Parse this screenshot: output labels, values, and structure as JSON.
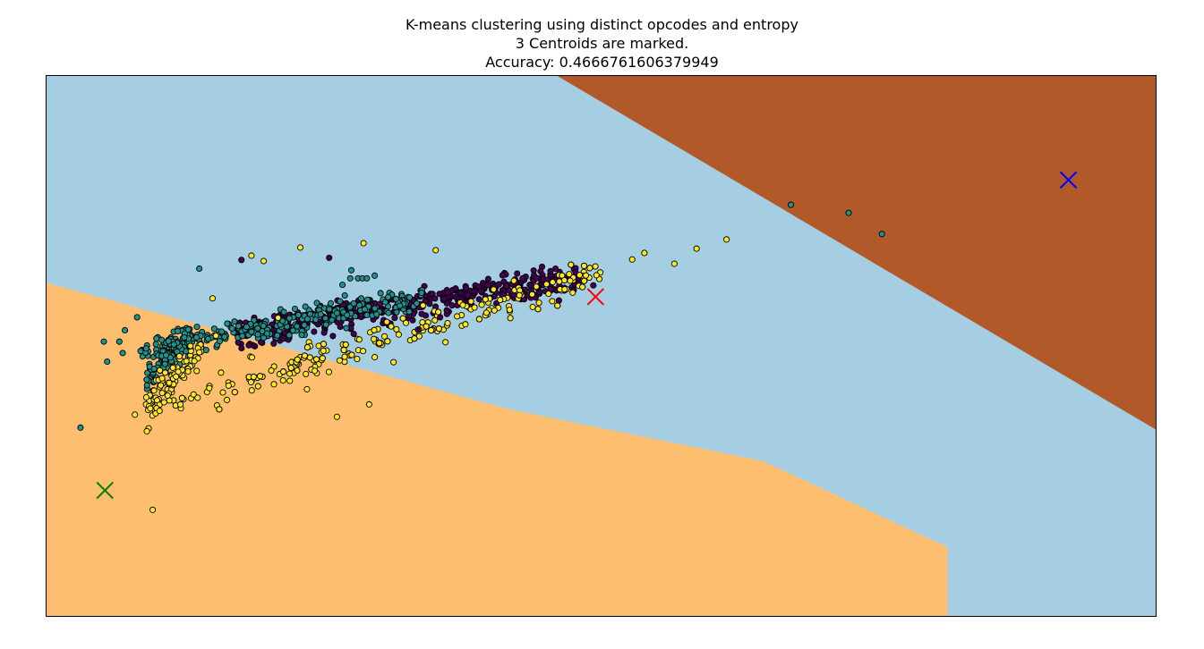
{
  "chart_data": {
    "type": "scatter",
    "title": "K-means clustering using distinct opcodes and entropy",
    "subtitle": "3 Centroids are marked.",
    "accuracy_text": "Accuracy: 0.4666761606379949",
    "xlabel": "",
    "ylabel": "",
    "xticks": false,
    "yticks": false,
    "xlim": [
      0,
      1
    ],
    "ylim": [
      0,
      1
    ],
    "grid": false,
    "legend": "none",
    "regions": [
      {
        "label": "0",
        "color": "#a6cee3"
      },
      {
        "label": "1",
        "color": "#fdbf6f"
      },
      {
        "label": "2",
        "color": "#b15928"
      }
    ],
    "region_boundaries": {
      "orange_upper": [
        [
          0.0,
          0.617
        ],
        [
          0.417,
          0.383
        ],
        [
          0.646,
          0.287
        ],
        [
          0.812,
          0.128
        ],
        [
          0.812,
          0.0
        ]
      ],
      "orange_upper_note": "",
      "brown_lower": [
        [
          0.46,
          1.0
        ],
        [
          1.0,
          0.345
        ]
      ]
    },
    "centroids": [
      {
        "x": 0.495,
        "y": 0.591,
        "color": "#ff0000"
      },
      {
        "x": 0.053,
        "y": 0.233,
        "color": "#008000"
      },
      {
        "x": 0.921,
        "y": 0.807,
        "color": "#0000ff"
      }
    ],
    "point_colors": {
      "purple": "#440154",
      "teal": "#21918c",
      "yellow": "#fde725"
    },
    "series": [
      {
        "color_key": "teal",
        "points": [
          [
            0.031,
            0.349
          ],
          [
            0.671,
            0.761
          ],
          [
            0.723,
            0.746
          ],
          [
            0.753,
            0.707
          ],
          [
            0.138,
            0.643
          ],
          [
            0.082,
            0.553
          ],
          [
            0.052,
            0.508
          ],
          [
            0.066,
            0.508
          ],
          [
            0.071,
            0.529
          ],
          [
            0.055,
            0.471
          ],
          [
            0.069,
            0.487
          ],
          [
            0.281,
            0.625
          ],
          [
            0.285,
            0.625
          ],
          [
            0.289,
            0.625
          ],
          [
            0.274,
            0.625
          ],
          [
            0.267,
            0.613
          ],
          [
            0.296,
            0.63
          ],
          [
            0.275,
            0.64
          ]
        ]
      },
      {
        "color_key": "yellow",
        "points": [
          [
            0.096,
            0.197
          ],
          [
            0.613,
            0.697
          ],
          [
            0.586,
            0.68
          ],
          [
            0.528,
            0.66
          ],
          [
            0.229,
            0.682
          ],
          [
            0.286,
            0.69
          ],
          [
            0.196,
            0.657
          ],
          [
            0.351,
            0.677
          ],
          [
            0.209,
            0.552
          ],
          [
            0.242,
            0.454
          ],
          [
            0.262,
            0.369
          ],
          [
            0.291,
            0.392
          ],
          [
            0.313,
            0.47
          ],
          [
            0.235,
            0.42
          ],
          [
            0.187,
            0.443
          ],
          [
            0.15,
            0.588
          ],
          [
            0.153,
            0.519
          ],
          [
            0.08,
            0.373
          ],
          [
            0.121,
            0.392
          ],
          [
            0.185,
            0.667
          ],
          [
            0.566,
            0.652
          ],
          [
            0.539,
            0.672
          ]
        ]
      },
      {
        "color_key": "purple",
        "points": [
          [
            0.176,
            0.659
          ],
          [
            0.255,
            0.663
          ],
          [
            0.493,
            0.612
          ],
          [
            0.462,
            0.584
          ],
          [
            0.355,
            0.553
          ],
          [
            0.335,
            0.53
          ]
        ]
      }
    ],
    "dense_bands": [
      {
        "color_key": "purple",
        "from": [
          0.17,
          0.52
        ],
        "to": [
          0.48,
          0.63
        ],
        "width": 0.04,
        "count": 460,
        "seed": 11
      },
      {
        "color_key": "teal",
        "from": [
          0.085,
          0.49
        ],
        "to": [
          0.34,
          0.59
        ],
        "width": 0.035,
        "count": 260,
        "seed": 23
      },
      {
        "color_key": "teal",
        "from": [
          0.09,
          0.44
        ],
        "to": [
          0.13,
          0.52
        ],
        "width": 0.04,
        "count": 120,
        "seed": 29
      },
      {
        "color_key": "yellow",
        "from": [
          0.09,
          0.38
        ],
        "to": [
          0.5,
          0.63
        ],
        "width": 0.05,
        "count": 330,
        "seed": 37
      },
      {
        "color_key": "yellow",
        "from": [
          0.09,
          0.38
        ],
        "to": [
          0.14,
          0.5
        ],
        "width": 0.05,
        "count": 90,
        "seed": 41
      }
    ]
  }
}
